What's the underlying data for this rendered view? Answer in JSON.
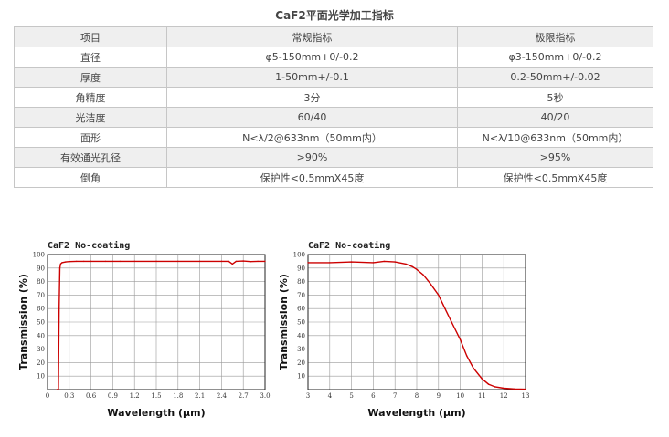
{
  "table": {
    "title": "CaF2平面光学加工指标",
    "headers": [
      "项目",
      "常规指标",
      "极限指标"
    ],
    "rows": [
      [
        "直径",
        "φ5-150mm+0/-0.2",
        "φ3-150mm+0/-0.2"
      ],
      [
        "厚度",
        "1-50mm+/-0.1",
        "0.2-50mm+/-0.02"
      ],
      [
        "角精度",
        "3分",
        "5秒"
      ],
      [
        "光洁度",
        "60/40",
        "40/20"
      ],
      [
        "面形",
        "N<λ/2@633nm（50mm内）",
        "N<λ/10@633nm（50mm内）"
      ],
      [
        "有效通光孔径",
        ">90%",
        ">95%"
      ],
      [
        "倒角",
        "保护性<0.5mmX45度",
        "保护性<0.5mmX45度"
      ]
    ]
  },
  "chart_data": [
    {
      "type": "line",
      "title": "CaF2 No-coating",
      "xlabel": "Wavelength (μm)",
      "ylabel": "Transmission (%)",
      "xlim": [
        0,
        3.0
      ],
      "ylim": [
        0,
        100
      ],
      "xticks": [
        "0",
        "0.3",
        "0.6",
        "0.9",
        "1.2",
        "1.5",
        "1.8",
        "2.1",
        "2.4",
        "2.7",
        "3.0"
      ],
      "yticks": [
        "10",
        "20",
        "30",
        "40",
        "50",
        "60",
        "70",
        "80",
        "90",
        "100"
      ],
      "grid": true,
      "line_color": "#cc0000",
      "series": [
        {
          "x": [
            0.13,
            0.15,
            0.16,
            0.17,
            0.18,
            0.2,
            0.25,
            0.3,
            0.4,
            0.5,
            0.6,
            0.8,
            1.0,
            1.2,
            1.5,
            1.8,
            2.1,
            2.4,
            2.5,
            2.55,
            2.6,
            2.7,
            2.8,
            2.9,
            3.0
          ],
          "y": [
            0,
            0,
            60,
            90,
            93,
            94,
            94.5,
            94.8,
            95,
            95,
            95,
            95,
            95,
            95,
            95,
            95,
            95,
            95,
            95,
            93,
            95,
            95.2,
            94.8,
            95,
            95
          ]
        }
      ]
    },
    {
      "type": "line",
      "title": "CaF2 No-coating",
      "xlabel": "Wavelength (μm)",
      "ylabel": "Transmission (%)",
      "xlim": [
        3,
        13
      ],
      "ylim": [
        0,
        100
      ],
      "xticks": [
        "3",
        "4",
        "5",
        "6",
        "7",
        "8",
        "9",
        "10",
        "11",
        "12",
        "13"
      ],
      "yticks": [
        "10",
        "20",
        "30",
        "40",
        "50",
        "60",
        "70",
        "80",
        "90",
        "100"
      ],
      "grid": true,
      "line_color": "#cc0000",
      "series": [
        {
          "x": [
            3,
            4,
            5,
            6,
            6.5,
            7,
            7.5,
            7.8,
            8,
            8.3,
            8.6,
            9,
            9.3,
            9.6,
            10,
            10.3,
            10.6,
            11,
            11.3,
            11.6,
            12,
            12.5,
            13
          ],
          "y": [
            94,
            94,
            94.5,
            94,
            95,
            94.5,
            93,
            91,
            89,
            85,
            79,
            70,
            60,
            50,
            37,
            25,
            16,
            8,
            4,
            2,
            1,
            0.5,
            0.3
          ]
        }
      ]
    }
  ]
}
